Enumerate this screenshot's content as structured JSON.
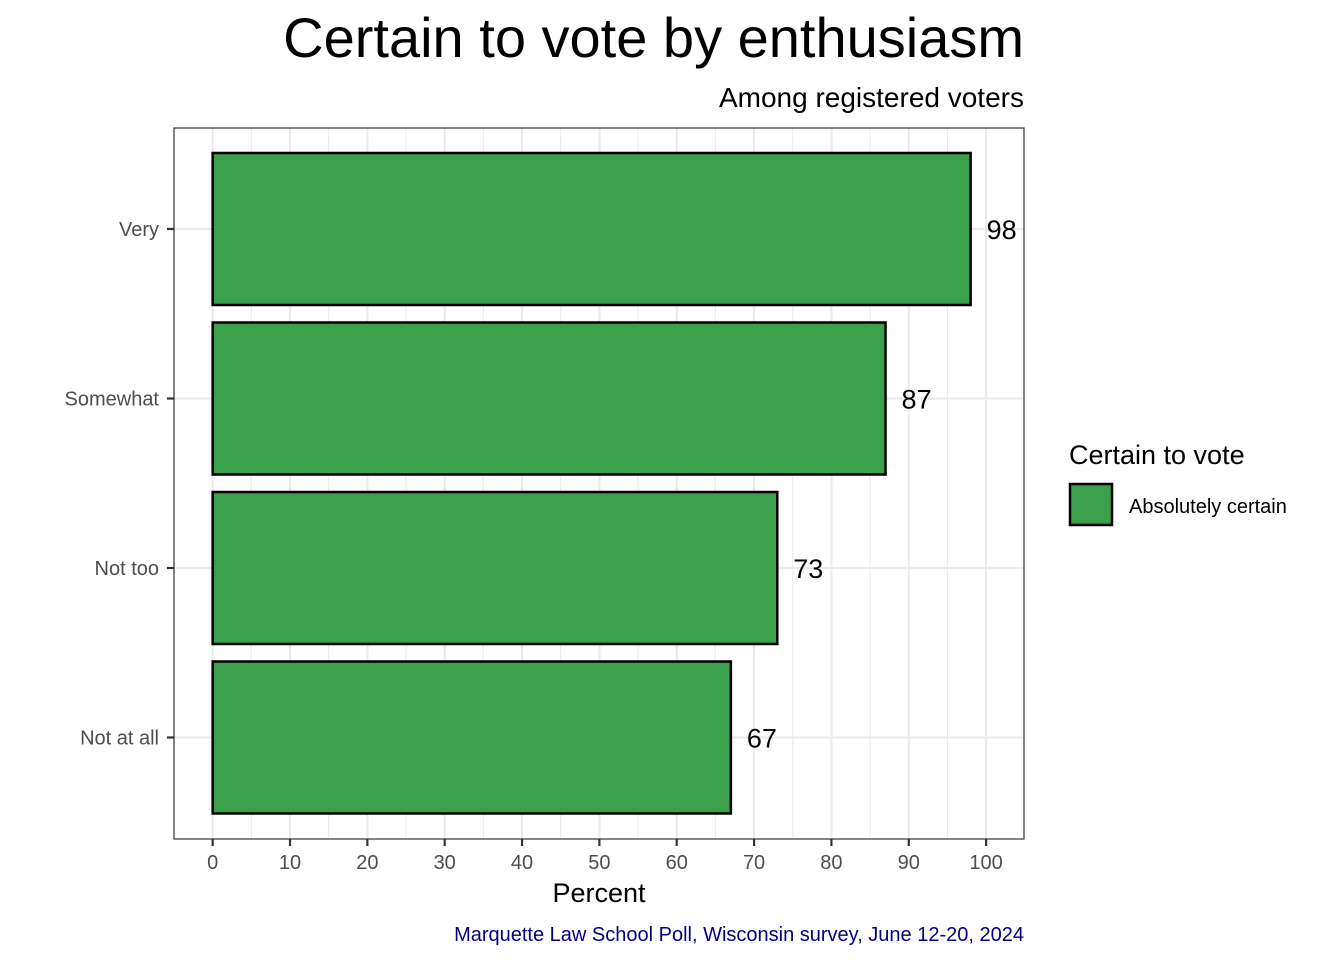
{
  "chart_data": {
    "type": "bar",
    "orientation": "horizontal",
    "title": "Certain to vote by enthusiasm",
    "subtitle": "Among registered voters",
    "categories": [
      "Very",
      "Somewhat",
      "Not too",
      "Not at all"
    ],
    "series": [
      {
        "name": "Absolutely certain",
        "values": [
          98,
          87,
          73,
          67
        ],
        "color": "#3aa04c"
      }
    ],
    "data_labels": [
      "98",
      "87",
      "73",
      "67"
    ],
    "xlabel": "Percent",
    "ylabel": "",
    "xlim": [
      -5,
      104.9
    ],
    "x_ticks": [
      "0",
      "10",
      "20",
      "30",
      "40",
      "50",
      "60",
      "70",
      "80",
      "90",
      "100"
    ],
    "grid": true,
    "legend": {
      "title": "Certain to vote",
      "placement": "right"
    },
    "caption": "Marquette Law School Poll, Wisconsin survey, June 12-20, 2024"
  },
  "colors": {
    "bar_fill": "#3aa04c",
    "bar_stroke": "#000000",
    "grid": "#ebebeb",
    "caption": "#000080"
  }
}
